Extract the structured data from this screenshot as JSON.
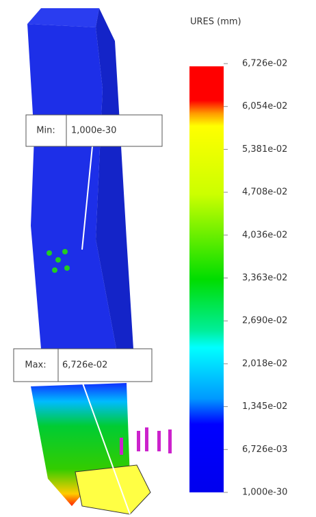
{
  "legend": {
    "title": "URES (mm)",
    "labels": [
      "6,726e-02",
      "6,054e-02",
      "5,381e-02",
      "4,708e-02",
      "4,036e-02",
      "3,363e-02",
      "2,690e-02",
      "2,018e-02",
      "1,345e-02",
      "6,726e-03",
      "1,000e-30"
    ]
  },
  "annotations": {
    "min": {
      "label": "Min:",
      "value": "1,000e-30"
    },
    "max": {
      "label": "Max:",
      "value": "6,726e-02"
    }
  }
}
